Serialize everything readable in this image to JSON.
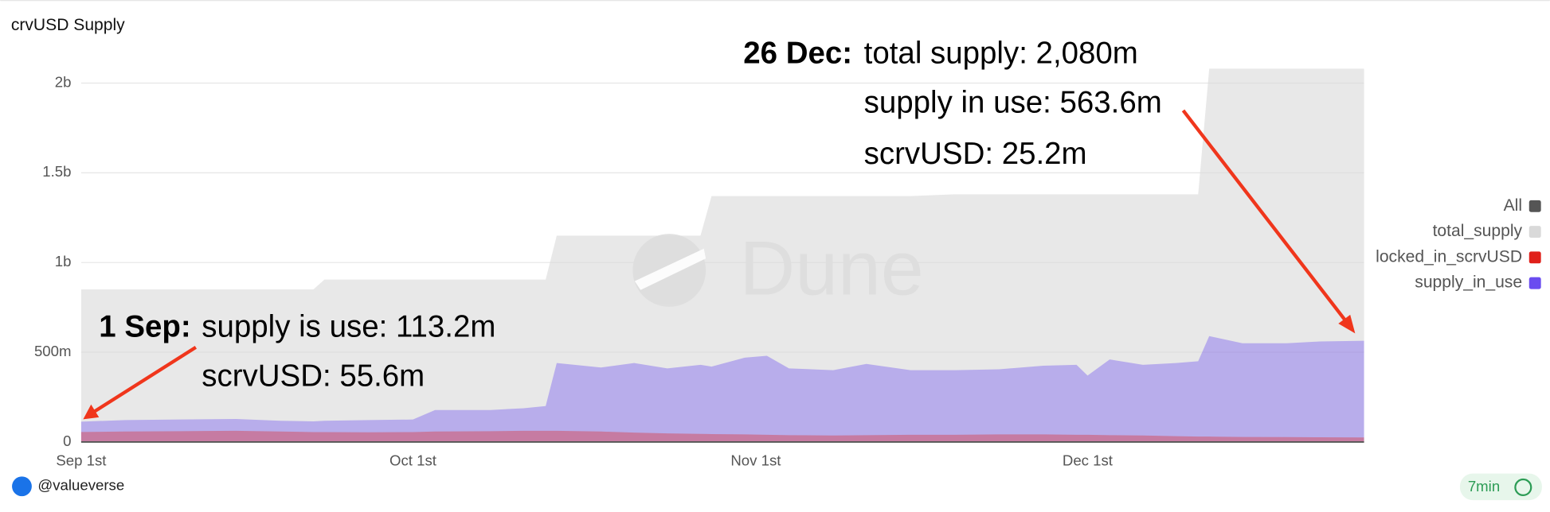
{
  "chart_data": {
    "type": "area",
    "title": "crvUSD Supply",
    "x": [
      "Sep 1",
      "Sep 5",
      "Sep 10",
      "Sep 15",
      "Sep 19",
      "Sep 22",
      "Sep 23",
      "Sep 27",
      "Oct 1",
      "Oct 3",
      "Oct 8",
      "Oct 11",
      "Oct 13",
      "Oct 14",
      "Oct 18",
      "Oct 21",
      "Oct 24",
      "Oct 27",
      "Oct 28",
      "Oct 31",
      "Nov 2",
      "Nov 4",
      "Nov 8",
      "Nov 11",
      "Nov 15",
      "Nov 19",
      "Nov 23",
      "Nov 27",
      "Nov 30",
      "Dec 1",
      "Dec 3",
      "Dec 6",
      "Dec 9",
      "Dec 11",
      "Dec 12",
      "Dec 15",
      "Dec 19",
      "Dec 22",
      "Dec 26"
    ],
    "series": [
      {
        "name": "total_supply",
        "color": "#d9d9d9",
        "values": [
          850,
          850,
          850,
          850,
          850,
          850,
          905,
          905,
          905,
          905,
          905,
          905,
          905,
          1150,
          1150,
          1150,
          1150,
          1150,
          1370,
          1370,
          1370,
          1370,
          1370,
          1370,
          1370,
          1380,
          1380,
          1380,
          1380,
          1380,
          1380,
          1380,
          1380,
          1380,
          2080,
          2080,
          2080,
          2080,
          2080
        ]
      },
      {
        "name": "supply_in_use",
        "color": "#6a4cf0",
        "values": [
          113.2,
          122,
          125,
          128,
          118,
          115,
          118,
          122,
          125,
          178,
          178,
          188,
          200,
          440,
          415,
          440,
          410,
          430,
          420,
          470,
          480,
          410,
          400,
          435,
          400,
          400,
          405,
          425,
          430,
          370,
          460,
          430,
          440,
          450,
          590,
          550,
          550,
          560,
          563.6
        ]
      },
      {
        "name": "locked_in_scrvUSD",
        "color": "#e0201a",
        "values": [
          55.6,
          58,
          60,
          62,
          58,
          55,
          55,
          54,
          55,
          58,
          60,
          62,
          62,
          62,
          58,
          52,
          48,
          45,
          44,
          42,
          40,
          38,
          36,
          38,
          40,
          40,
          42,
          42,
          40,
          40,
          38,
          36,
          32,
          30,
          30,
          28,
          27,
          26,
          25.2
        ]
      }
    ],
    "legend_all": {
      "label": "All",
      "color": "#555555"
    },
    "xlim": [
      "Sep 1",
      "Dec 26"
    ],
    "xticks": [
      {
        "value": "Sep 1",
        "label": "Sep 1st"
      },
      {
        "value": "Oct 1",
        "label": "Oct 1st"
      },
      {
        "value": "Nov 1",
        "label": "Nov 1st"
      },
      {
        "value": "Dec 1",
        "label": "Dec 1st"
      }
    ],
    "ylim": [
      0,
      2100
    ],
    "yticks": [
      0,
      {
        "value": 500,
        "label": "500m"
      },
      {
        "value": 1000,
        "label": "1b"
      },
      {
        "value": 1500,
        "label": "1.5b"
      },
      {
        "value": 2000,
        "label": "2b"
      }
    ],
    "grid": true,
    "legend_position": "right",
    "watermark": "Dune",
    "annotations": {
      "end_date": "26 Dec:",
      "end_lines": [
        "total supply: 2,080m",
        "supply in use: 563.6m",
        "scrvUSD: 25.2m"
      ],
      "start_date": "1 Sep:",
      "start_lines": [
        "supply is use: 113.2m",
        "scrvUSD: 55.6m"
      ]
    }
  },
  "footer": {
    "author": "@valueverse",
    "badge": "7min"
  }
}
